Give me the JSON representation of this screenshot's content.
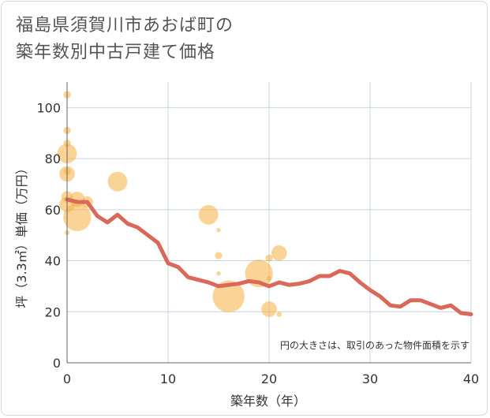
{
  "title": {
    "line1": "福島県須賀川市あおば町の",
    "line2": "築年数別中古戸建て価格"
  },
  "chart_data": {
    "type": "scatter",
    "title": "福島県須賀川市あおば町の築年数別中古戸建て価格",
    "xlabel": "築年数（年）",
    "ylabel": "坪（3.3㎡）単価（万円）",
    "xlim": [
      0,
      40
    ],
    "ylim": [
      0,
      110
    ],
    "xticks": [
      "0",
      "10",
      "20",
      "30",
      "40"
    ],
    "yticks": [
      "0",
      "20",
      "40",
      "60",
      "80",
      "100"
    ],
    "xtick_values": [
      0,
      10,
      20,
      30,
      40
    ],
    "ytick_values": [
      0,
      20,
      40,
      60,
      80,
      100
    ],
    "grid": true,
    "note": "円の大きさは、取引のあった物件面積を示す",
    "colors": {
      "bubble": "#f5b041",
      "line": "#d9695a",
      "grid": "#c8d4e0",
      "axis": "#666666"
    },
    "bubbles": [
      {
        "x": 0,
        "y": 105,
        "size": 1
      },
      {
        "x": 0,
        "y": 91,
        "size": 1
      },
      {
        "x": 0,
        "y": 86,
        "size": 1
      },
      {
        "x": 0,
        "y": 82,
        "size": 4
      },
      {
        "x": 0,
        "y": 75,
        "size": 1
      },
      {
        "x": 0,
        "y": 74,
        "size": 3
      },
      {
        "x": 0,
        "y": 65,
        "size": 2
      },
      {
        "x": 0,
        "y": 62,
        "size": 3
      },
      {
        "x": 0,
        "y": 51,
        "size": 0.4
      },
      {
        "x": 1,
        "y": 64,
        "size": 3
      },
      {
        "x": 1,
        "y": 57,
        "size": 6
      },
      {
        "x": 2,
        "y": 63,
        "size": 2
      },
      {
        "x": 5,
        "y": 71,
        "size": 4
      },
      {
        "x": 14,
        "y": 58,
        "size": 4
      },
      {
        "x": 15,
        "y": 52,
        "size": 0.3
      },
      {
        "x": 15,
        "y": 42,
        "size": 1
      },
      {
        "x": 15,
        "y": 35,
        "size": 0.3
      },
      {
        "x": 16,
        "y": 26,
        "size": 7
      },
      {
        "x": 19,
        "y": 35,
        "size": 6
      },
      {
        "x": 20,
        "y": 41,
        "size": 1
      },
      {
        "x": 20,
        "y": 33,
        "size": 0.5
      },
      {
        "x": 20,
        "y": 21,
        "size": 3
      },
      {
        "x": 21,
        "y": 43,
        "size": 3
      },
      {
        "x": 21,
        "y": 19,
        "size": 0.5
      }
    ],
    "trend": {
      "x": [
        0,
        1,
        2,
        3,
        4,
        5,
        6,
        7,
        8,
        9,
        10,
        11,
        12,
        13,
        14,
        15,
        16,
        17,
        18,
        19,
        20,
        21,
        22,
        23,
        24,
        25,
        26,
        27,
        28,
        29,
        30,
        31,
        32,
        33,
        34,
        35,
        36,
        37,
        38,
        39,
        40
      ],
      "y": [
        64,
        63,
        63,
        57.5,
        55,
        58,
        54.5,
        53,
        50,
        47,
        39,
        37.5,
        33.5,
        32.5,
        31.5,
        30,
        30.5,
        31,
        32,
        31.5,
        30,
        31.5,
        30.5,
        31,
        32,
        34,
        34,
        36,
        35,
        31.5,
        28.5,
        26,
        22.5,
        22,
        24.5,
        24.5,
        23,
        21.5,
        22.5,
        19.5,
        19
      ]
    }
  }
}
